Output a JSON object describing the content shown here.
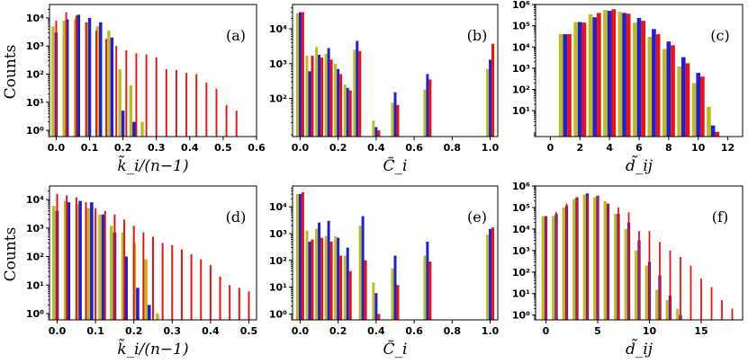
{
  "ylabel": "Counts",
  "colors": {
    "series1": "#bcbd22",
    "series2": "#1f1fd6",
    "series3": "#ee1111"
  },
  "chart_data": [
    {
      "type": "bar",
      "panel": "(a)",
      "xlabel": "k̃_i/(n−1)",
      "yscale": "log",
      "xlim": [
        -0.02,
        0.6
      ],
      "ylim": [
        0.6,
        30000
      ],
      "xticks": [
        0.0,
        0.1,
        0.2,
        0.3,
        0.4,
        0.5,
        0.6
      ],
      "xtick_labels": [
        "0.0",
        "0.1",
        "0.2",
        "0.3",
        "0.4",
        "0.5",
        "0.6"
      ],
      "yticks": [
        1,
        10,
        100,
        1000,
        10000
      ],
      "ytick_labels": [
        "10⁰",
        "10¹",
        "10²",
        "10³",
        "10⁴"
      ],
      "series": [
        {
          "name": "series1",
          "x": [
            0.0,
            0.033,
            0.067,
            0.1,
            0.133,
            0.167,
            0.2,
            0.233,
            0.267
          ],
          "values": [
            5000,
            8000,
            9000,
            7000,
            5000,
            3500,
            150,
            40,
            2
          ]
        },
        {
          "name": "series2",
          "x": [
            0.0,
            0.033,
            0.067,
            0.1,
            0.133,
            0.167,
            0.2,
            0.233
          ],
          "values": [
            3000,
            9000,
            13000,
            10000,
            7000,
            2000,
            5,
            2
          ]
        },
        {
          "name": "series3",
          "x": [
            0.0,
            0.03,
            0.06,
            0.09,
            0.12,
            0.15,
            0.18,
            0.21,
            0.24,
            0.27,
            0.3,
            0.33,
            0.36,
            0.39,
            0.42,
            0.45,
            0.48,
            0.51,
            0.54
          ],
          "values": [
            8000,
            16000,
            12000,
            7000,
            3500,
            1800,
            1000,
            700,
            550,
            500,
            400,
            150,
            140,
            110,
            100,
            50,
            30,
            8,
            5
          ]
        }
      ]
    },
    {
      "type": "bar",
      "panel": "(b)",
      "xlabel": "C̃_i",
      "yscale": "log",
      "xlim": [
        -0.04,
        1.04
      ],
      "ylim": [
        8,
        50000
      ],
      "xticks": [
        0.0,
        0.2,
        0.4,
        0.6,
        0.8,
        1.0
      ],
      "xtick_labels": [
        "0.0",
        "0.2",
        "0.4",
        "0.6",
        "0.8",
        "1.0"
      ],
      "yticks": [
        100,
        1000,
        10000
      ],
      "ytick_labels": [
        "10²",
        "10³",
        "10⁴"
      ],
      "series": [
        {
          "name": "series1",
          "x": [
            0.0,
            0.05,
            0.1,
            0.15,
            0.2,
            0.25,
            0.3,
            0.4,
            0.5,
            0.67,
            1.0
          ],
          "values": [
            28000,
            1700,
            3000,
            1900,
            1000,
            250,
            2500,
            23,
            75,
            180,
            700
          ]
        },
        {
          "name": "series2",
          "x": [
            0.0,
            0.05,
            0.1,
            0.15,
            0.2,
            0.25,
            0.3,
            0.4,
            0.5,
            0.67,
            1.0
          ],
          "values": [
            30000,
            600,
            1800,
            2800,
            700,
            200,
            4500,
            15,
            150,
            500,
            1300
          ]
        },
        {
          "name": "series3",
          "x": [
            0.0,
            0.05,
            0.1,
            0.15,
            0.2,
            0.25,
            0.3,
            0.4,
            0.5,
            0.67,
            1.0
          ],
          "values": [
            30000,
            1700,
            1500,
            1300,
            500,
            170,
            2300,
            12,
            65,
            350,
            3700
          ]
        }
      ]
    },
    {
      "type": "bar",
      "panel": "(c)",
      "xlabel": "d̃_ij",
      "yscale": "log",
      "xlim": [
        -1,
        13
      ],
      "ylim": [
        0.6,
        1000000
      ],
      "xticks": [
        0,
        2,
        4,
        6,
        8,
        10,
        12
      ],
      "xtick_labels": [
        "0",
        "2",
        "4",
        "6",
        "8",
        "10",
        "12"
      ],
      "yticks": [
        10,
        100,
        1000,
        10000,
        100000,
        1000000
      ],
      "ytick_labels": [
        "10¹",
        "10²",
        "10³",
        "10⁴",
        "10⁵",
        "10⁶"
      ],
      "series": [
        {
          "name": "series1",
          "x": [
            1,
            2,
            3,
            4,
            5,
            6,
            7,
            8,
            9,
            10,
            11
          ],
          "values": [
            40000,
            150000,
            350000,
            550000,
            450000,
            140000,
            30000,
            8000,
            1200,
            200,
            15
          ]
        },
        {
          "name": "series2",
          "x": [
            1,
            2,
            3,
            4,
            5,
            6,
            7,
            8,
            9,
            10,
            11
          ],
          "values": [
            40000,
            150000,
            250000,
            500000,
            400000,
            230000,
            70000,
            18000,
            3300,
            600,
            2
          ]
        },
        {
          "name": "series3",
          "x": [
            1,
            2,
            3,
            4,
            5,
            6,
            7,
            8,
            9,
            10,
            11
          ],
          "values": [
            40000,
            140000,
            400000,
            600000,
            370000,
            170000,
            40000,
            12000,
            1700,
            400,
            1
          ]
        }
      ]
    },
    {
      "type": "bar",
      "panel": "(d)",
      "xlabel": "k̃_i/(n−1)",
      "yscale": "log",
      "xlim": [
        -0.02,
        0.52
      ],
      "ylim": [
        0.6,
        30000
      ],
      "xticks": [
        0.0,
        0.1,
        0.2,
        0.3,
        0.4,
        0.5
      ],
      "xtick_labels": [
        "0.0",
        "0.1",
        "0.2",
        "0.3",
        "0.4",
        "0.5"
      ],
      "yticks": [
        1,
        10,
        100,
        1000,
        10000
      ],
      "ytick_labels": [
        "10⁰",
        "10¹",
        "10²",
        "10³",
        "10⁴"
      ],
      "series": [
        {
          "name": "series1",
          "x": [
            0.0,
            0.03,
            0.06,
            0.09,
            0.12,
            0.15,
            0.18,
            0.21,
            0.24,
            0.27
          ],
          "values": [
            6000,
            9000,
            7000,
            5000,
            3000,
            1200,
            700,
            300,
            80,
            1
          ]
        },
        {
          "name": "series2",
          "x": [
            0.0,
            0.03,
            0.06,
            0.09,
            0.12,
            0.15,
            0.18,
            0.21,
            0.24
          ],
          "values": [
            4000,
            8000,
            9000,
            8000,
            3000,
            700,
            100,
            8,
            2
          ]
        },
        {
          "name": "series3",
          "x": [
            0.0,
            0.025,
            0.05,
            0.075,
            0.1,
            0.125,
            0.15,
            0.175,
            0.2,
            0.225,
            0.25,
            0.275,
            0.3,
            0.325,
            0.35,
            0.375,
            0.4,
            0.425,
            0.45,
            0.475,
            0.5
          ],
          "values": [
            16000,
            14000,
            12000,
            8000,
            5000,
            4000,
            3000,
            2000,
            1200,
            700,
            500,
            300,
            250,
            180,
            120,
            80,
            50,
            20,
            10,
            8,
            6
          ]
        }
      ]
    },
    {
      "type": "bar",
      "panel": "(e)",
      "xlabel": "C̃_i",
      "yscale": "log",
      "xlim": [
        -0.04,
        1.04
      ],
      "ylim": [
        0.6,
        60000
      ],
      "xticks": [
        0.0,
        0.2,
        0.4,
        0.6,
        0.8,
        1.0
      ],
      "xtick_labels": [
        "0.0",
        "0.2",
        "0.4",
        "0.6",
        "0.8",
        "1.0"
      ],
      "yticks": [
        1,
        10,
        100,
        1000,
        10000
      ],
      "ytick_labels": [
        "10⁰",
        "10¹",
        "10²",
        "10³",
        "10⁴"
      ],
      "series": [
        {
          "name": "series1",
          "x": [
            0.0,
            0.05,
            0.1,
            0.15,
            0.2,
            0.25,
            0.33,
            0.4,
            0.5,
            0.67,
            1.0
          ],
          "values": [
            30000,
            1300,
            1500,
            800,
            800,
            150,
            2000,
            15,
            50,
            150,
            900
          ]
        },
        {
          "name": "series2",
          "x": [
            0.0,
            0.05,
            0.1,
            0.15,
            0.2,
            0.25,
            0.33,
            0.4,
            0.5,
            0.67,
            1.0
          ],
          "values": [
            30000,
            500,
            2600,
            3000,
            700,
            300,
            4500,
            6,
            150,
            500,
            1500
          ]
        },
        {
          "name": "series3",
          "x": [
            0.0,
            0.05,
            0.1,
            0.15,
            0.2,
            0.25,
            0.33,
            0.4,
            0.5,
            0.67,
            1.0
          ],
          "values": [
            35000,
            600,
            700,
            500,
            150,
            40,
            100,
            1,
            12,
            90,
            1700
          ]
        }
      ]
    },
    {
      "type": "bar",
      "panel": "(f)",
      "xlabel": "d̃_ij",
      "yscale": "log",
      "xlim": [
        -1,
        19
      ],
      "ylim": [
        0.6,
        1000000
      ],
      "xticks": [
        0,
        5,
        10,
        15
      ],
      "xtick_labels": [
        "0",
        "5",
        "10",
        "15"
      ],
      "yticks": [
        1,
        10,
        100,
        1000,
        10000,
        100000,
        1000000
      ],
      "ytick_labels": [
        "10⁰",
        "10¹",
        "10²",
        "10³",
        "10⁴",
        "10⁵",
        "10⁶"
      ],
      "series": [
        {
          "name": "series1",
          "x": [
            0,
            1,
            2,
            3,
            4,
            5,
            6,
            7,
            8,
            9,
            10,
            11,
            12,
            13
          ],
          "values": [
            40000,
            40000,
            100000,
            250000,
            400000,
            300000,
            200000,
            50000,
            10000,
            1000,
            200,
            15,
            5,
            2
          ]
        },
        {
          "name": "series2",
          "x": [
            0,
            1,
            2,
            3,
            4,
            5,
            6,
            7,
            8,
            9,
            10,
            11,
            12,
            13
          ],
          "values": [
            40000,
            50000,
            120000,
            300000,
            450000,
            350000,
            150000,
            50000,
            20000,
            3000,
            300,
            70,
            8,
            1
          ]
        },
        {
          "name": "series3",
          "x": [
            0,
            1,
            2,
            3,
            4,
            5,
            6,
            7,
            8,
            9,
            10,
            11,
            12,
            13,
            14,
            15,
            16,
            17,
            18
          ],
          "values": [
            40000,
            60000,
            150000,
            300000,
            350000,
            350000,
            150000,
            100000,
            60000,
            8000,
            8000,
            2500,
            1000,
            500,
            200,
            50,
            20,
            5,
            2
          ]
        }
      ]
    }
  ]
}
